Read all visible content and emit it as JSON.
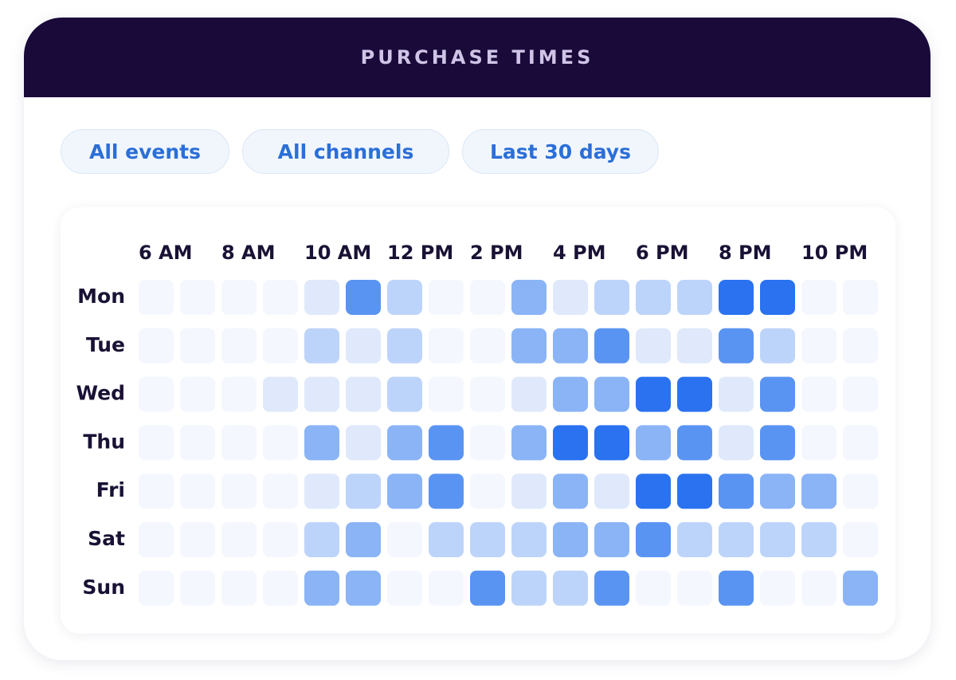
{
  "filters": [
    "All events",
    "All channels",
    "Last 30 days"
  ],
  "chart_data": {
    "type": "heatmap",
    "title": "PURCHASE TIMES",
    "x": [
      "6 AM",
      null,
      "8 AM",
      null,
      "10 AM",
      null,
      "12 PM",
      null,
      "2 PM",
      null,
      "4 PM",
      null,
      "6 PM",
      null,
      "8 PM",
      null,
      "10 PM",
      null
    ],
    "y": [
      "Mon",
      "Tue",
      "Wed",
      "Thu",
      "Fri",
      "Sat",
      "Sun"
    ],
    "colors": [
      "#f4f7fd",
      "#dfe9fb",
      "#bdd4fa",
      "#8ab4f6",
      "#5a94f2",
      "#2a72f0"
    ],
    "values": [
      [
        0,
        0,
        0,
        0,
        1,
        4,
        2,
        0,
        0,
        3,
        1,
        2,
        2,
        2,
        5,
        5,
        0,
        0
      ],
      [
        0,
        0,
        0,
        0,
        2,
        1,
        2,
        0,
        0,
        3,
        3,
        4,
        1,
        1,
        4,
        2,
        0,
        0
      ],
      [
        0,
        0,
        0,
        1,
        1,
        1,
        2,
        0,
        0,
        1,
        3,
        3,
        5,
        5,
        1,
        4,
        0,
        0
      ],
      [
        0,
        0,
        0,
        0,
        3,
        1,
        3,
        4,
        0,
        3,
        5,
        5,
        3,
        4,
        1,
        4,
        0,
        0
      ],
      [
        0,
        0,
        0,
        0,
        1,
        2,
        3,
        4,
        0,
        1,
        3,
        1,
        5,
        5,
        4,
        3,
        3,
        0
      ],
      [
        0,
        0,
        0,
        0,
        2,
        3,
        0,
        2,
        2,
        2,
        3,
        3,
        4,
        2,
        2,
        2,
        2,
        0
      ],
      [
        0,
        0,
        0,
        0,
        3,
        3,
        0,
        0,
        4,
        2,
        2,
        4,
        0,
        0,
        4,
        0,
        0,
        3
      ]
    ]
  }
}
